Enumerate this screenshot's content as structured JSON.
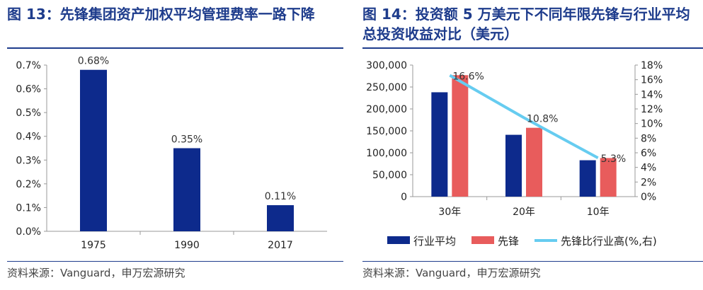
{
  "left": {
    "title": "图 13：先锋集团资产加权平均管理费率一路下降",
    "source": "资料来源：Vanguard，申万宏源研究"
  },
  "right": {
    "title": "图 14：投资额 5 万美元下不同年限先锋与行业平均总投资收益对比（美元）",
    "source": "资料来源：Vanguard，申万宏源研究"
  },
  "colors": {
    "navy": "#0d2a8c",
    "red": "#e85c5c",
    "cyan": "#66ccf0",
    "title": "#1e3c8c"
  },
  "chart_data": [
    {
      "type": "bar",
      "title": "图 13：先锋集团资产加权平均管理费率一路下降",
      "categories": [
        "1975",
        "1990",
        "2017"
      ],
      "values": [
        0.68,
        0.35,
        0.11
      ],
      "value_labels": [
        "0.68%",
        "0.35%",
        "0.11%"
      ],
      "ylim": [
        0,
        0.7
      ],
      "yticks": [
        "0.0%",
        "0.1%",
        "0.2%",
        "0.3%",
        "0.4%",
        "0.5%",
        "0.6%",
        "0.7%"
      ],
      "grid": false,
      "color": "#0d2a8c"
    },
    {
      "type": "bar",
      "title": "图 14：投资额 5 万美元下不同年限先锋与行业平均总投资收益对比（美元）",
      "categories": [
        "30年",
        "20年",
        "10年"
      ],
      "series": [
        {
          "name": "行业平均",
          "type": "bar",
          "axis": "left",
          "color": "#0d2a8c",
          "values": [
            238000,
            141000,
            83000
          ]
        },
        {
          "name": "先锋",
          "type": "bar",
          "axis": "left",
          "color": "#e85c5c",
          "values": [
            277000,
            157000,
            88000
          ]
        },
        {
          "name": "先锋比行业高(%,右)",
          "type": "line",
          "axis": "right",
          "color": "#66ccf0",
          "values": [
            16.6,
            10.8,
            5.3
          ],
          "value_labels": [
            "16.6%",
            "10.8%",
            "5.3%"
          ]
        }
      ],
      "ylim_left": [
        0,
        300000
      ],
      "yticks_left": [
        "0",
        "50,000",
        "100,000",
        "150,000",
        "200,000",
        "250,000",
        "300,000"
      ],
      "ylim_right": [
        0,
        18
      ],
      "yticks_right": [
        "0%",
        "2%",
        "4%",
        "6%",
        "8%",
        "10%",
        "12%",
        "14%",
        "16%",
        "18%"
      ],
      "grid": false,
      "legend": "bottom"
    }
  ]
}
